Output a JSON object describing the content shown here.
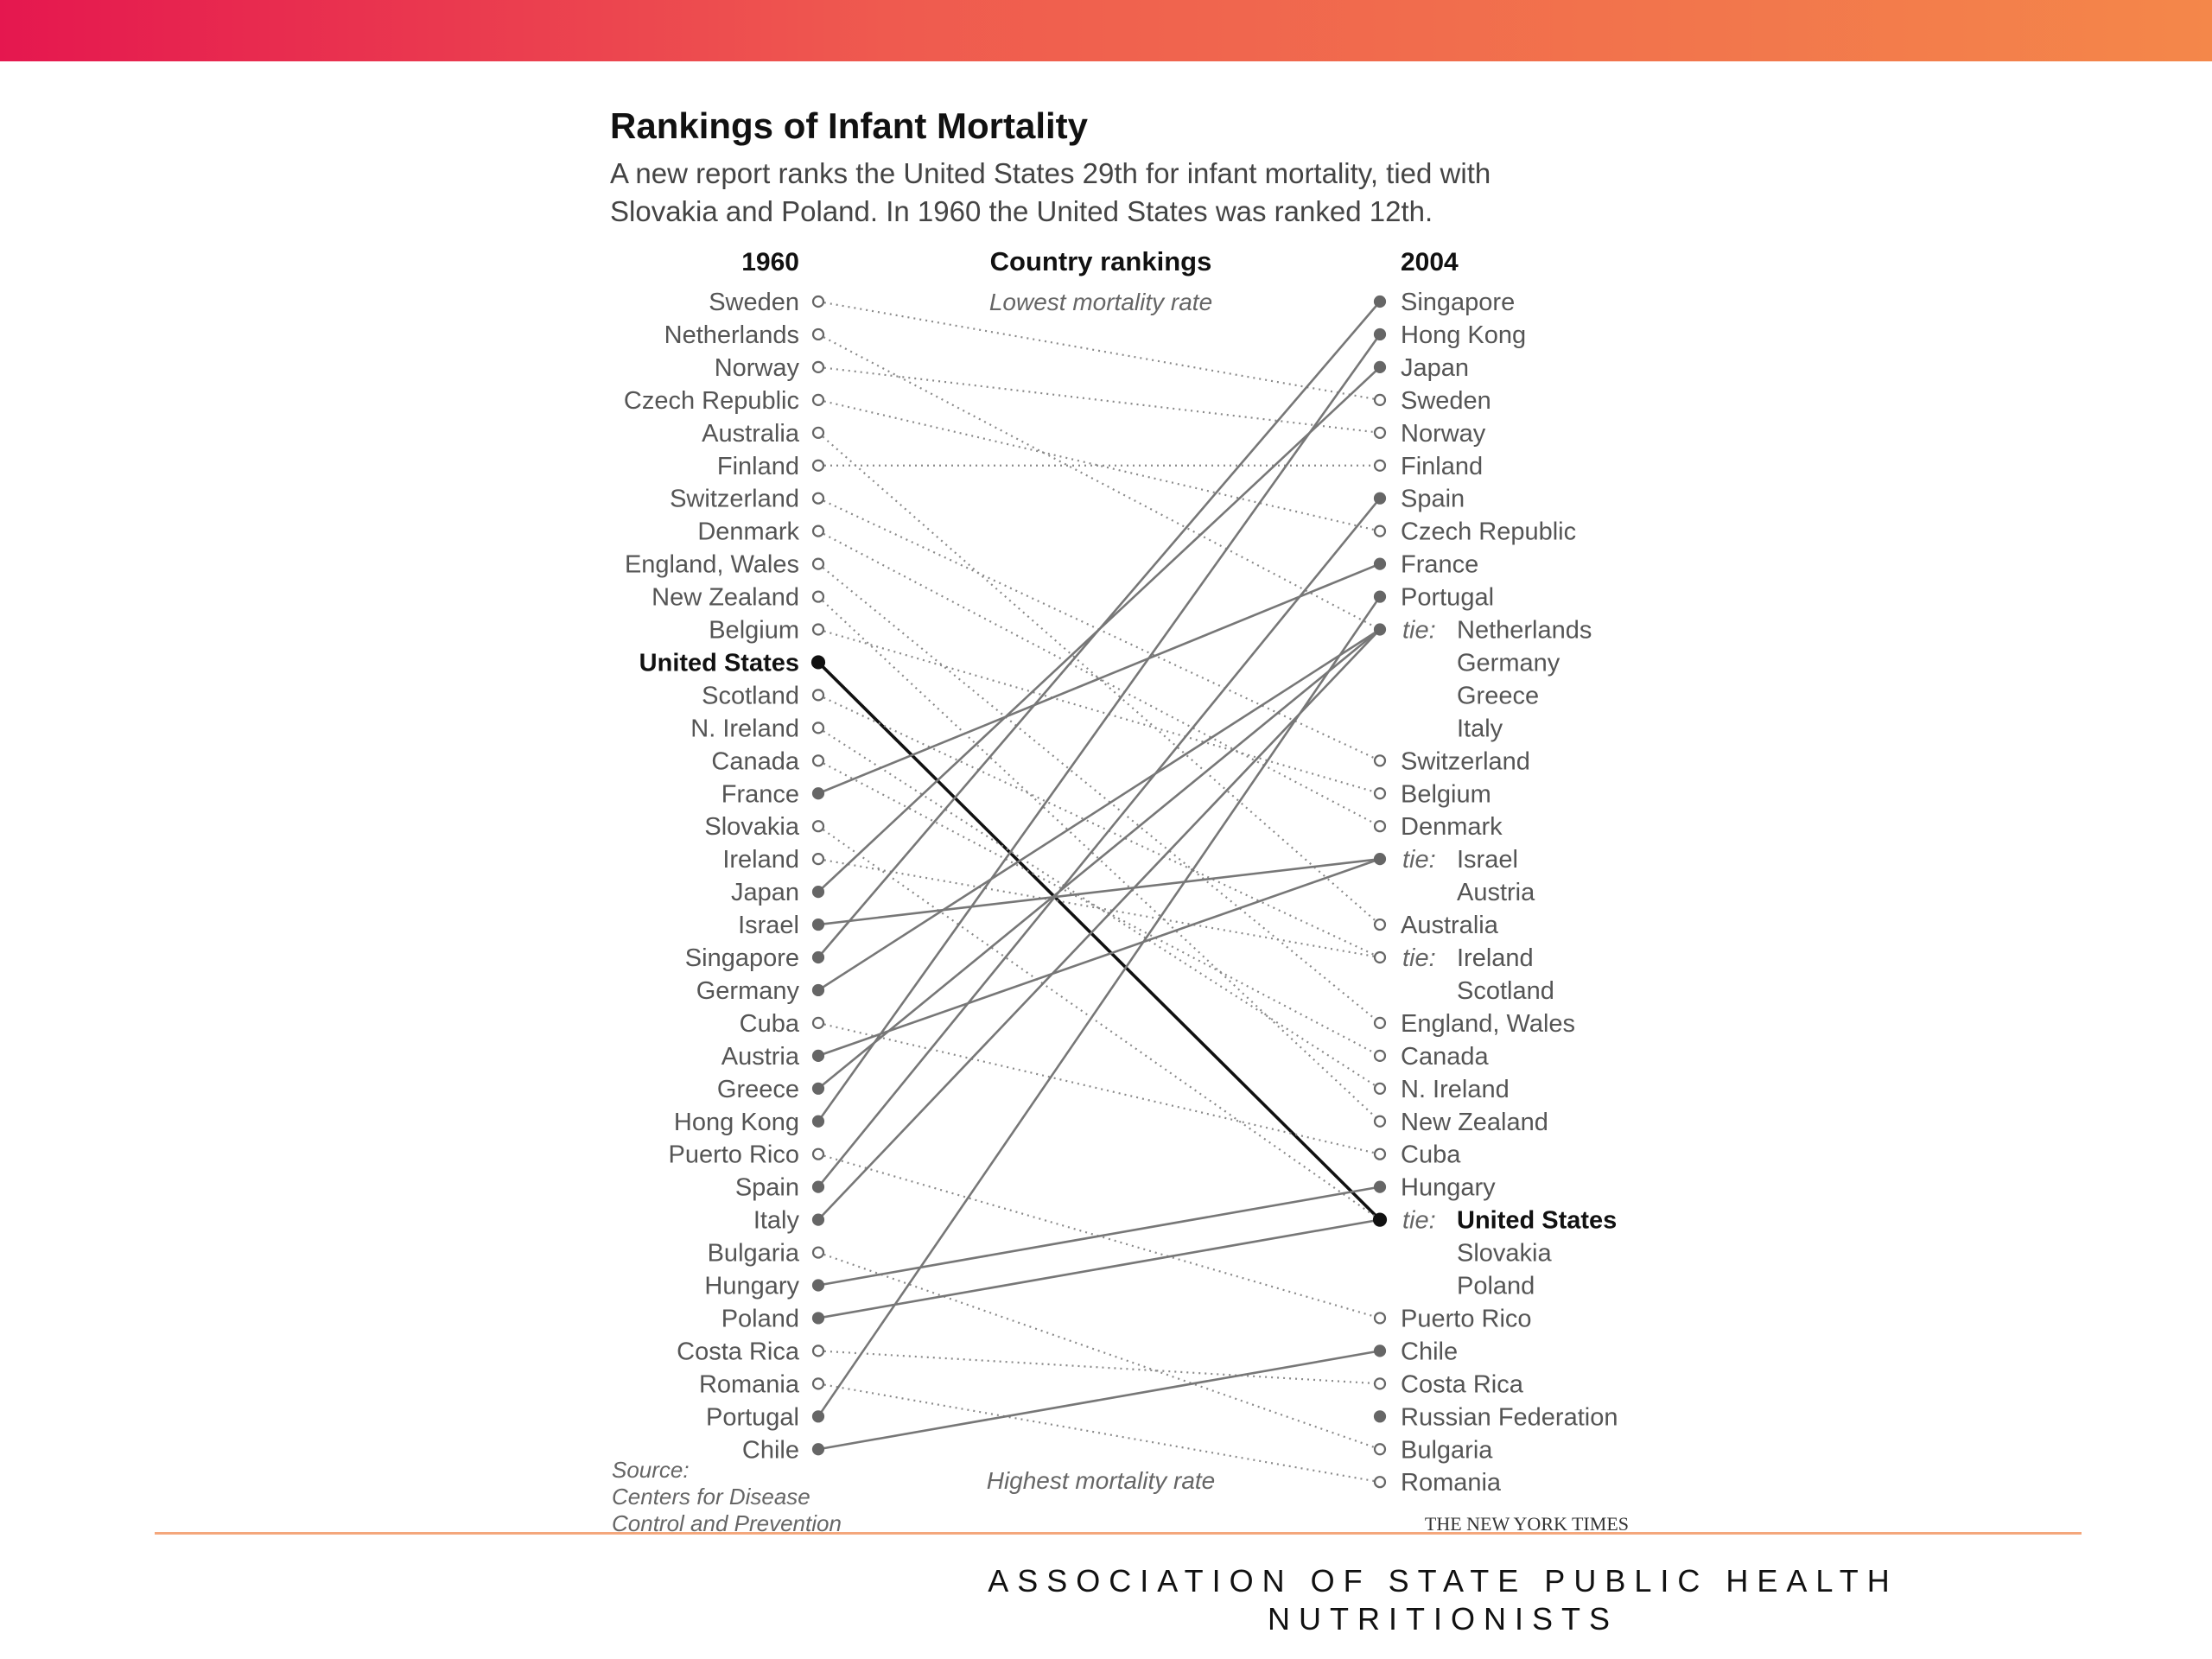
{
  "colors": {
    "bar_start": "#e5174f",
    "bar_end": "#f4874a",
    "line_gray": "#777777",
    "line_dotted": "#8a8a8a",
    "line_us": "#111111",
    "footer_rule": "#f4a77c"
  },
  "footer": {
    "text": "ASSOCIATION OF STATE PUBLIC HEALTH NUTRITIONISTS"
  },
  "chart_data": {
    "type": "slope",
    "title": "Rankings of Infant Mortality",
    "subtitle_lines": [
      "A new report ranks the United States 29th for infant mortality, tied with",
      "Slovakia and Poland. In 1960 the United States was ranked 12th."
    ],
    "left_header": "1960",
    "center_header": "Country rankings",
    "right_header": "2004",
    "top_note": "Lowest mortality rate",
    "bottom_note": "Highest mortality rate",
    "tie_label": "tie:",
    "source_lines": [
      "Source:",
      "Centers for Disease",
      "Control and Prevention"
    ],
    "credit": "THE NEW YORK TIMES",
    "left": [
      "Sweden",
      "Netherlands",
      "Norway",
      "Czech Republic",
      "Australia",
      "Finland",
      "Switzerland",
      "Denmark",
      "England, Wales",
      "New Zealand",
      "Belgium",
      "United States",
      "Scotland",
      "N. Ireland",
      "Canada",
      "France",
      "Slovakia",
      "Ireland",
      "Japan",
      "Israel",
      "Singapore",
      "Germany",
      "Cuba",
      "Austria",
      "Greece",
      "Hong Kong",
      "Puerto Rico",
      "Spain",
      "Italy",
      "Bulgaria",
      "Hungary",
      "Poland",
      "Costa Rica",
      "Romania",
      "Portugal",
      "Chile"
    ],
    "left_filled": [
      "United States",
      "France",
      "Japan",
      "Israel",
      "Singapore",
      "Germany",
      "Austria",
      "Greece",
      "Hong Kong",
      "Spain",
      "Italy",
      "Hungary",
      "Poland",
      "Portugal",
      "Chile"
    ],
    "right": [
      {
        "name": "Singapore",
        "filled": true
      },
      {
        "name": "Hong Kong",
        "filled": true
      },
      {
        "name": "Japan",
        "filled": true
      },
      {
        "name": "Sweden",
        "filled": false
      },
      {
        "name": "Norway",
        "filled": false
      },
      {
        "name": "Finland",
        "filled": false
      },
      {
        "name": "Spain",
        "filled": true
      },
      {
        "name": "Czech Republic",
        "filled": false
      },
      {
        "name": "France",
        "filled": true
      },
      {
        "name": "Portugal",
        "filled": true
      },
      {
        "name": "Netherlands",
        "filled": true,
        "tie": true,
        "group": [
          "Germany",
          "Greece",
          "Italy"
        ]
      },
      {
        "name": "Switzerland",
        "filled": false
      },
      {
        "name": "Belgium",
        "filled": false
      },
      {
        "name": "Denmark",
        "filled": false
      },
      {
        "name": "Israel",
        "filled": true,
        "tie": true,
        "group": [
          "Austria"
        ]
      },
      {
        "name": "Australia",
        "filled": false
      },
      {
        "name": "Ireland",
        "filled": false,
        "tie": true,
        "group": [
          "Scotland"
        ]
      },
      {
        "name": "England, Wales",
        "filled": false
      },
      {
        "name": "Canada",
        "filled": false
      },
      {
        "name": "N. Ireland",
        "filled": false
      },
      {
        "name": "New Zealand",
        "filled": false
      },
      {
        "name": "Cuba",
        "filled": false
      },
      {
        "name": "Hungary",
        "filled": true
      },
      {
        "name": "United States",
        "filled": true,
        "tie": true,
        "group": [
          "Slovakia",
          "Poland"
        ]
      },
      {
        "name": "Puerto Rico",
        "filled": false
      },
      {
        "name": "Chile",
        "filled": true
      },
      {
        "name": "Costa Rica",
        "filled": false
      },
      {
        "name": "Russian Federation",
        "filled": true
      },
      {
        "name": "Bulgaria",
        "filled": false
      },
      {
        "name": "Romania",
        "filled": false
      }
    ],
    "highlight": "United States"
  }
}
